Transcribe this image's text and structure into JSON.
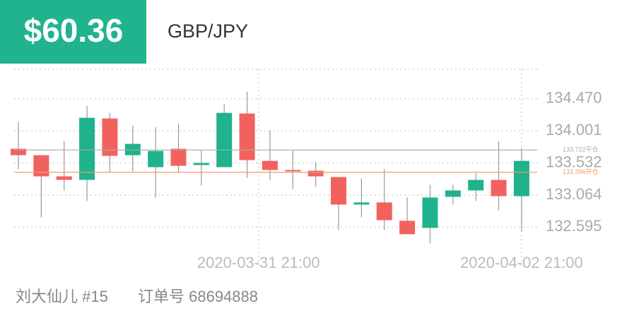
{
  "header": {
    "price": "$60.36",
    "symbol": "GBP/JPY"
  },
  "footer": {
    "user": "刘大仙儿 #15",
    "order": "订单号 68694888"
  },
  "chart_data": {
    "type": "candlestick",
    "categories": [
      null,
      null,
      null,
      null,
      null,
      null,
      null,
      null,
      null,
      null,
      null,
      null,
      null,
      null,
      null,
      null,
      null,
      null,
      null,
      null,
      null,
      null,
      null
    ],
    "open": [
      133.739,
      133.646,
      133.337,
      133.285,
      134.182,
      133.646,
      133.471,
      133.739,
      133.502,
      133.471,
      134.254,
      133.563,
      133.43,
      133.419,
      133.327,
      132.925,
      132.956,
      132.688,
      132.585,
      133.038,
      133.131,
      133.285,
      133.048
    ],
    "close": [
      133.646,
      133.337,
      133.285,
      134.192,
      133.636,
      133.811,
      133.708,
      133.491,
      133.533,
      134.264,
      133.574,
      133.43,
      133.409,
      133.337,
      132.925,
      132.956,
      132.698,
      132.492,
      133.028,
      133.131,
      133.285,
      133.048,
      133.563
    ],
    "high": [
      134.13,
      133.646,
      133.852,
      134.367,
      134.264,
      134.079,
      134.058,
      134.109,
      133.718,
      134.388,
      134.573,
      134.006,
      133.718,
      133.543,
      133.327,
      133.306,
      133.44,
      133.028,
      133.213,
      133.213,
      133.388,
      133.852,
      133.749
    ],
    "low": [
      133.44,
      132.739,
      133.131,
      132.976,
      133.388,
      133.409,
      133.028,
      133.388,
      133.203,
      133.471,
      133.316,
      133.285,
      133.151,
      133.182,
      132.554,
      132.739,
      132.554,
      132.492,
      132.358,
      132.925,
      132.976,
      132.842,
      132.533
    ],
    "up_color": "#1fb28d",
    "down_color": "#f1625f",
    "ylim": [
      132.3,
      134.9
    ],
    "yticks": [
      {
        "value": 134.47,
        "label": "134.470"
      },
      134.001,
      133.532,
      133.064,
      132.595
    ],
    "xticks": [
      {
        "value": 10.5,
        "label": "2020-03-31 21:00"
      },
      {
        "value": 22,
        "label": "2020-04-02 21:00"
      }
    ],
    "reference_lines": [
      {
        "value": 133.722,
        "label": "133.722平仓",
        "color": "#aaaaaa"
      },
      {
        "value": 133.396,
        "label": "133.396开仓",
        "color": "#f29b6b"
      }
    ],
    "grid": true
  }
}
